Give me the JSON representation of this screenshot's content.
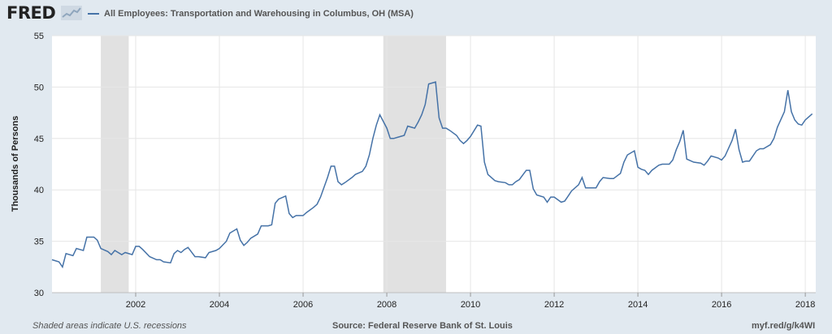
{
  "header": {
    "logo_text": "FRED",
    "logo_icon": "trend-line-icon",
    "series_title": "All Employees: Transportation and Warehousing in Columbus, OH (MSA)"
  },
  "footer": {
    "recession_note": "Shaded areas indicate U.S. recessions",
    "source": "Source: Federal Reserve Bank of St. Louis",
    "short_url": "myf.red/g/k4WI"
  },
  "chart_data": {
    "type": "line",
    "title": "All Employees: Transportation and Warehousing in Columbus, OH (MSA)",
    "ylabel": "Thousands of Persons",
    "xlabel": "",
    "ylim": [
      30,
      55
    ],
    "xlim": [
      2000.0,
      2018.25
    ],
    "yticks": [
      30,
      35,
      40,
      45,
      50,
      55
    ],
    "xticks": [
      "2002",
      "2004",
      "2006",
      "2008",
      "2010",
      "2012",
      "2014",
      "2016",
      "2018"
    ],
    "grid": true,
    "line_color": "#4572a7",
    "recession_color": "#e1e1e1",
    "recessions": [
      {
        "start": "2001-03",
        "end": "2001-11"
      },
      {
        "start": "2007-12",
        "end": "2009-06"
      }
    ],
    "series": [
      {
        "name": "All Employees: Transportation and Warehousing in Columbus, OH (MSA)",
        "points": [
          [
            "2000-01",
            33.2
          ],
          [
            "2000-03",
            33.0
          ],
          [
            "2000-04",
            32.5
          ],
          [
            "2000-05",
            33.8
          ],
          [
            "2000-07",
            33.6
          ],
          [
            "2000-08",
            34.3
          ],
          [
            "2000-10",
            34.1
          ],
          [
            "2000-11",
            35.4
          ],
          [
            "2001-01",
            35.4
          ],
          [
            "2001-02",
            35.1
          ],
          [
            "2001-03",
            34.3
          ],
          [
            "2001-05",
            34.0
          ],
          [
            "2001-06",
            33.7
          ],
          [
            "2001-07",
            34.1
          ],
          [
            "2001-09",
            33.7
          ],
          [
            "2001-10",
            33.9
          ],
          [
            "2001-12",
            33.7
          ],
          [
            "2002-01",
            34.5
          ],
          [
            "2002-02",
            34.5
          ],
          [
            "2002-03",
            34.2
          ],
          [
            "2002-05",
            33.5
          ],
          [
            "2002-07",
            33.2
          ],
          [
            "2002-08",
            33.2
          ],
          [
            "2002-09",
            33.0
          ],
          [
            "2002-11",
            32.9
          ],
          [
            "2002-12",
            33.8
          ],
          [
            "2003-01",
            34.1
          ],
          [
            "2003-02",
            33.9
          ],
          [
            "2003-03",
            34.2
          ],
          [
            "2003-04",
            34.4
          ],
          [
            "2003-06",
            33.5
          ],
          [
            "2003-07",
            33.5
          ],
          [
            "2003-09",
            33.4
          ],
          [
            "2003-10",
            33.9
          ],
          [
            "2003-12",
            34.1
          ],
          [
            "2004-01",
            34.3
          ],
          [
            "2004-03",
            35.0
          ],
          [
            "2004-04",
            35.8
          ],
          [
            "2004-06",
            36.2
          ],
          [
            "2004-07",
            35.1
          ],
          [
            "2004-08",
            34.6
          ],
          [
            "2004-09",
            34.9
          ],
          [
            "2004-10",
            35.3
          ],
          [
            "2004-12",
            35.7
          ],
          [
            "2005-01",
            36.5
          ],
          [
            "2005-03",
            36.5
          ],
          [
            "2005-04",
            36.6
          ],
          [
            "2005-05",
            38.7
          ],
          [
            "2005-06",
            39.1
          ],
          [
            "2005-08",
            39.4
          ],
          [
            "2005-09",
            37.7
          ],
          [
            "2005-10",
            37.3
          ],
          [
            "2005-11",
            37.5
          ],
          [
            "2006-01",
            37.5
          ],
          [
            "2006-02",
            37.8
          ],
          [
            "2006-04",
            38.3
          ],
          [
            "2006-05",
            38.6
          ],
          [
            "2006-06",
            39.3
          ],
          [
            "2006-08",
            41.2
          ],
          [
            "2006-09",
            42.3
          ],
          [
            "2006-10",
            42.3
          ],
          [
            "2006-11",
            40.8
          ],
          [
            "2006-12",
            40.5
          ],
          [
            "2007-01",
            40.7
          ],
          [
            "2007-03",
            41.2
          ],
          [
            "2007-04",
            41.5
          ],
          [
            "2007-06",
            41.8
          ],
          [
            "2007-07",
            42.3
          ],
          [
            "2007-08",
            43.4
          ],
          [
            "2007-09",
            45.0
          ],
          [
            "2007-10",
            46.3
          ],
          [
            "2007-11",
            47.3
          ],
          [
            "2008-01",
            46.0
          ],
          [
            "2008-02",
            45.0
          ],
          [
            "2008-03",
            45.0
          ],
          [
            "2008-04",
            45.1
          ],
          [
            "2008-06",
            45.3
          ],
          [
            "2008-07",
            46.2
          ],
          [
            "2008-09",
            46.0
          ],
          [
            "2008-10",
            46.6
          ],
          [
            "2008-11",
            47.3
          ],
          [
            "2008-12",
            48.3
          ],
          [
            "2009-01",
            50.3
          ],
          [
            "2009-03",
            50.5
          ],
          [
            "2009-04",
            47.0
          ],
          [
            "2009-05",
            46.0
          ],
          [
            "2009-06",
            46.0
          ],
          [
            "2009-07",
            45.8
          ],
          [
            "2009-09",
            45.3
          ],
          [
            "2009-10",
            44.8
          ],
          [
            "2009-11",
            44.5
          ],
          [
            "2009-12",
            44.8
          ],
          [
            "2010-01",
            45.2
          ],
          [
            "2010-03",
            46.3
          ],
          [
            "2010-04",
            46.2
          ],
          [
            "2010-05",
            42.7
          ],
          [
            "2010-06",
            41.5
          ],
          [
            "2010-08",
            40.9
          ],
          [
            "2010-09",
            40.8
          ],
          [
            "2010-11",
            40.7
          ],
          [
            "2010-12",
            40.5
          ],
          [
            "2011-01",
            40.5
          ],
          [
            "2011-02",
            40.8
          ],
          [
            "2011-03",
            41.0
          ],
          [
            "2011-05",
            41.9
          ],
          [
            "2011-06",
            41.9
          ],
          [
            "2011-07",
            40.1
          ],
          [
            "2011-08",
            39.5
          ],
          [
            "2011-10",
            39.3
          ],
          [
            "2011-11",
            38.8
          ],
          [
            "2011-12",
            39.3
          ],
          [
            "2012-01",
            39.3
          ],
          [
            "2012-03",
            38.8
          ],
          [
            "2012-04",
            38.9
          ],
          [
            "2012-05",
            39.4
          ],
          [
            "2012-06",
            39.9
          ],
          [
            "2012-08",
            40.5
          ],
          [
            "2012-09",
            41.2
          ],
          [
            "2012-10",
            40.2
          ],
          [
            "2012-11",
            40.2
          ],
          [
            "2013-01",
            40.2
          ],
          [
            "2013-02",
            40.8
          ],
          [
            "2013-03",
            41.2
          ],
          [
            "2013-05",
            41.1
          ],
          [
            "2013-06",
            41.1
          ],
          [
            "2013-08",
            41.6
          ],
          [
            "2013-09",
            42.7
          ],
          [
            "2013-10",
            43.4
          ],
          [
            "2013-12",
            43.8
          ],
          [
            "2014-01",
            42.2
          ],
          [
            "2014-02",
            42.0
          ],
          [
            "2014-03",
            41.9
          ],
          [
            "2014-04",
            41.5
          ],
          [
            "2014-05",
            41.9
          ],
          [
            "2014-07",
            42.4
          ],
          [
            "2014-08",
            42.5
          ],
          [
            "2014-10",
            42.5
          ],
          [
            "2014-11",
            42.9
          ],
          [
            "2014-12",
            43.9
          ],
          [
            "2015-01",
            44.7
          ],
          [
            "2015-02",
            45.8
          ],
          [
            "2015-03",
            43.0
          ],
          [
            "2015-05",
            42.7
          ],
          [
            "2015-07",
            42.6
          ],
          [
            "2015-08",
            42.4
          ],
          [
            "2015-09",
            42.8
          ],
          [
            "2015-10",
            43.3
          ],
          [
            "2015-12",
            43.1
          ],
          [
            "2016-01",
            42.9
          ],
          [
            "2016-02",
            43.3
          ],
          [
            "2016-04",
            44.8
          ],
          [
            "2016-05",
            45.9
          ],
          [
            "2016-06",
            43.9
          ],
          [
            "2016-07",
            42.7
          ],
          [
            "2016-08",
            42.8
          ],
          [
            "2016-09",
            42.8
          ],
          [
            "2016-11",
            43.8
          ],
          [
            "2016-12",
            44.0
          ],
          [
            "2017-01",
            44.0
          ],
          [
            "2017-03",
            44.4
          ],
          [
            "2017-04",
            45.0
          ],
          [
            "2017-05",
            46.1
          ],
          [
            "2017-07",
            47.6
          ],
          [
            "2017-08",
            49.7
          ],
          [
            "2017-09",
            47.6
          ],
          [
            "2017-10",
            46.8
          ],
          [
            "2017-11",
            46.4
          ],
          [
            "2017-12",
            46.3
          ],
          [
            "2018-01",
            46.8
          ],
          [
            "2018-02",
            47.1
          ],
          [
            "2018-03",
            47.4
          ]
        ]
      }
    ]
  }
}
